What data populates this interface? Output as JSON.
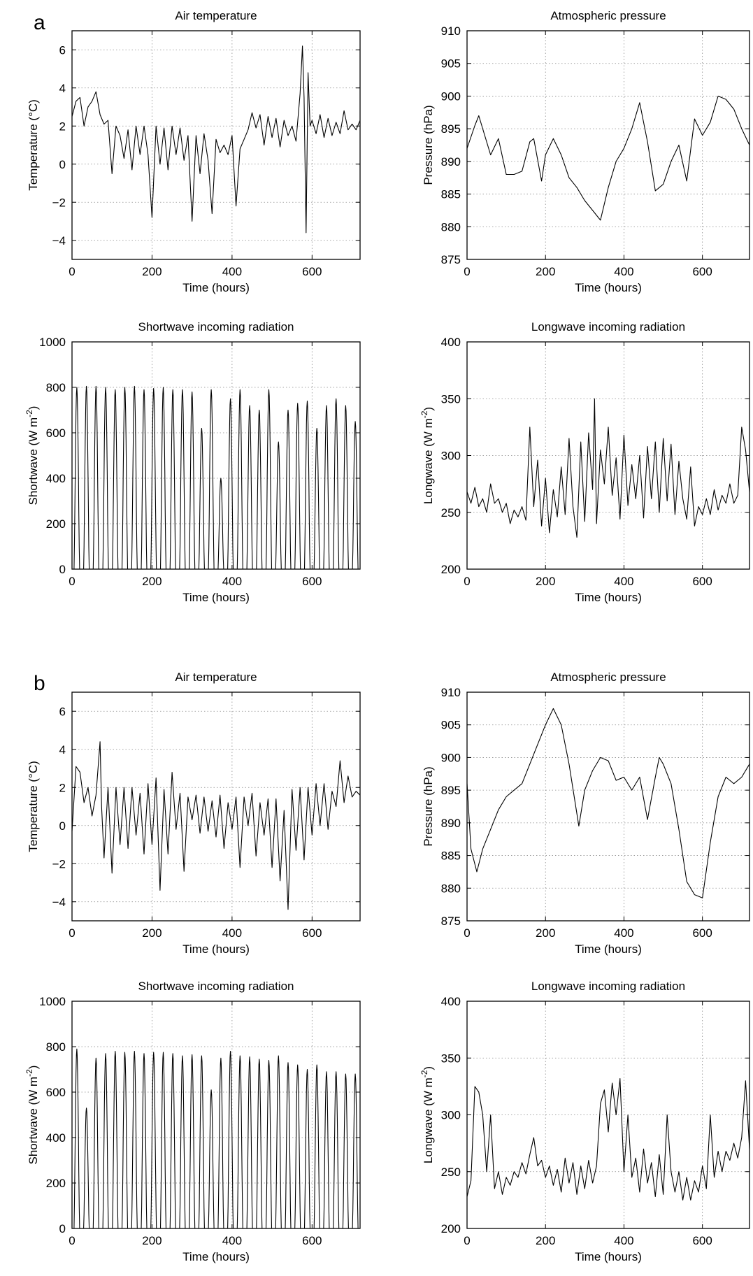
{
  "figure": {
    "panel_labels": [
      "a",
      "b"
    ]
  },
  "chart_data": [
    {
      "group": "a",
      "type": "line",
      "title": "Air temperature",
      "xlabel": "Time (hours)",
      "ylabel": "Temperature (°C)",
      "xlim": [
        0,
        720
      ],
      "ylim": [
        -5,
        7
      ],
      "xticks": [
        0,
        200,
        400,
        600
      ],
      "yticks": [
        -4,
        -2,
        0,
        2,
        4,
        6
      ],
      "grid": true,
      "series": [
        {
          "x": [
            0,
            10,
            20,
            30,
            40,
            50,
            60,
            70,
            80,
            90,
            100,
            110,
            120,
            130,
            140,
            150,
            160,
            170,
            180,
            190,
            200,
            210,
            220,
            230,
            240,
            250,
            260,
            270,
            280,
            290,
            300,
            310,
            320,
            330,
            340,
            350,
            360,
            370,
            380,
            390,
            400,
            410,
            420,
            430,
            440,
            450,
            460,
            470,
            480,
            490,
            500,
            510,
            520,
            530,
            540,
            550,
            560,
            570,
            576,
            580,
            585,
            590,
            595,
            600,
            610,
            620,
            630,
            640,
            650,
            660,
            670,
            680,
            690,
            700,
            710,
            720
          ],
          "y": [
            2.5,
            3.3,
            3.5,
            2.0,
            3.0,
            3.3,
            3.8,
            2.6,
            2.1,
            2.3,
            -0.5,
            2.0,
            1.5,
            0.3,
            1.8,
            -0.3,
            2.0,
            0.5,
            2.0,
            0.5,
            -2.8,
            2.0,
            0.0,
            1.9,
            -0.3,
            2.0,
            0.5,
            1.9,
            0.2,
            1.5,
            -3.0,
            1.5,
            -0.5,
            1.6,
            0.2,
            -2.6,
            1.3,
            0.6,
            1.0,
            0.5,
            1.5,
            -2.2,
            0.8,
            1.3,
            1.8,
            2.7,
            1.9,
            2.6,
            1.0,
            2.5,
            1.4,
            2.4,
            0.9,
            2.3,
            1.5,
            2.0,
            1.2,
            3.7,
            6.2,
            3.5,
            -3.6,
            4.8,
            2.0,
            2.3,
            1.6,
            2.6,
            1.4,
            2.4,
            1.5,
            2.2,
            1.6,
            2.8,
            1.8,
            2.1,
            1.8,
            2.3
          ]
        }
      ]
    },
    {
      "group": "a",
      "type": "line",
      "title": "Atmospheric pressure",
      "xlabel": "Time (hours)",
      "ylabel": "Pressure (hPa)",
      "xlim": [
        0,
        720
      ],
      "ylim": [
        875,
        910
      ],
      "xticks": [
        0,
        200,
        400,
        600
      ],
      "yticks": [
        875,
        880,
        885,
        890,
        895,
        900,
        905,
        910
      ],
      "grid": true,
      "series": [
        {
          "x": [
            0,
            20,
            30,
            40,
            60,
            80,
            100,
            120,
            140,
            160,
            170,
            190,
            200,
            220,
            240,
            260,
            280,
            300,
            320,
            340,
            360,
            380,
            400,
            420,
            440,
            460,
            480,
            500,
            520,
            540,
            560,
            580,
            600,
            620,
            640,
            660,
            680,
            700,
            720
          ],
          "y": [
            892,
            895.5,
            897,
            895,
            891,
            893.5,
            888,
            888,
            888.5,
            893,
            893.5,
            887,
            891,
            893.5,
            891,
            887.5,
            886,
            884,
            882.5,
            881,
            886,
            890,
            892,
            895,
            899,
            893,
            885.5,
            886.5,
            890,
            892.5,
            887,
            896.5,
            894,
            896,
            900,
            899.5,
            898,
            895,
            892.5
          ]
        }
      ]
    },
    {
      "group": "a",
      "type": "line",
      "title": "Shortwave incoming radiation",
      "xlabel": "Time (hours)",
      "ylabel": "Shortwave (W m⁻²)",
      "xlim": [
        0,
        720
      ],
      "ylim": [
        0,
        1000
      ],
      "xticks": [
        0,
        200,
        400,
        600
      ],
      "yticks": [
        0,
        200,
        400,
        600,
        800,
        1000
      ],
      "grid": true,
      "daily_peaks": [
        800,
        805,
        805,
        800,
        790,
        800,
        805,
        790,
        795,
        800,
        790,
        790,
        780,
        620,
        790,
        400,
        750,
        790,
        720,
        700,
        790,
        560,
        700,
        730,
        740,
        620,
        720,
        750,
        720,
        650
      ]
    },
    {
      "group": "a",
      "type": "line",
      "title": "Longwave incoming radiation",
      "xlabel": "Time (hours)",
      "ylabel": "Longwave (W m⁻²)",
      "xlim": [
        0,
        720
      ],
      "ylim": [
        200,
        400
      ],
      "xticks": [
        0,
        200,
        400,
        600
      ],
      "yticks": [
        200,
        250,
        300,
        350,
        400
      ],
      "grid": true,
      "series": [
        {
          "x": [
            0,
            10,
            20,
            30,
            40,
            50,
            60,
            70,
            80,
            90,
            100,
            110,
            120,
            130,
            140,
            150,
            160,
            170,
            180,
            190,
            200,
            210,
            220,
            230,
            240,
            250,
            260,
            270,
            280,
            290,
            300,
            310,
            320,
            325,
            330,
            340,
            350,
            360,
            370,
            380,
            390,
            400,
            410,
            420,
            430,
            440,
            450,
            460,
            470,
            480,
            490,
            500,
            510,
            520,
            530,
            540,
            550,
            560,
            570,
            580,
            590,
            600,
            610,
            620,
            630,
            640,
            650,
            660,
            670,
            680,
            690,
            700,
            710,
            720
          ],
          "y": [
            268,
            258,
            272,
            255,
            262,
            250,
            275,
            258,
            262,
            250,
            258,
            240,
            252,
            246,
            255,
            243,
            325,
            255,
            296,
            238,
            280,
            232,
            270,
            246,
            290,
            248,
            315,
            255,
            228,
            312,
            242,
            320,
            270,
            350,
            240,
            305,
            275,
            325,
            265,
            298,
            244,
            318,
            256,
            292,
            262,
            300,
            245,
            308,
            262,
            312,
            250,
            315,
            260,
            310,
            248,
            295,
            262,
            244,
            290,
            238,
            255,
            248,
            262,
            248,
            270,
            252,
            265,
            258,
            275,
            258,
            265,
            325,
            305,
            268
          ]
        }
      ]
    },
    {
      "group": "b",
      "type": "line",
      "title": "Air temperature",
      "xlabel": "Time (hours)",
      "ylabel": "Temperature (°C)",
      "xlim": [
        0,
        720
      ],
      "ylim": [
        -5,
        7
      ],
      "xticks": [
        0,
        200,
        400,
        600
      ],
      "yticks": [
        -4,
        -2,
        0,
        2,
        4,
        6
      ],
      "grid": true,
      "series": [
        {
          "x": [
            0,
            10,
            20,
            30,
            40,
            50,
            60,
            70,
            74,
            80,
            90,
            100,
            110,
            120,
            130,
            140,
            150,
            160,
            170,
            180,
            190,
            200,
            210,
            220,
            230,
            240,
            250,
            260,
            270,
            280,
            290,
            300,
            310,
            320,
            330,
            340,
            350,
            360,
            370,
            380,
            390,
            400,
            410,
            420,
            430,
            440,
            450,
            460,
            470,
            480,
            490,
            500,
            510,
            520,
            530,
            540,
            550,
            560,
            570,
            580,
            590,
            600,
            610,
            620,
            630,
            640,
            650,
            660,
            670,
            680,
            690,
            700,
            710,
            720
          ],
          "y": [
            -0.3,
            3.1,
            2.8,
            1.2,
            2.0,
            0.5,
            1.6,
            4.4,
            1.0,
            -1.7,
            2.0,
            -2.5,
            2.0,
            -1.0,
            2.0,
            -1.2,
            2.0,
            -0.5,
            1.7,
            -1.5,
            2.2,
            -1.0,
            2.5,
            -3.4,
            1.9,
            -1.5,
            2.8,
            -0.2,
            1.7,
            -2.4,
            1.5,
            0.3,
            1.6,
            -0.4,
            1.5,
            -0.3,
            1.3,
            -0.6,
            1.6,
            -1.2,
            1.2,
            -0.2,
            1.5,
            -2.2,
            1.5,
            0.0,
            1.7,
            -1.6,
            1.2,
            -0.5,
            1.4,
            -2.2,
            1.4,
            -2.9,
            0.8,
            -4.4,
            1.9,
            -1.3,
            2.0,
            -1.8,
            2.0,
            -0.5,
            2.2,
            0.0,
            2.2,
            -0.2,
            1.8,
            1.0,
            3.4,
            1.2,
            2.6,
            1.5,
            1.8,
            1.6
          ]
        }
      ]
    },
    {
      "group": "b",
      "type": "line",
      "title": "Atmospheric pressure",
      "xlabel": "Time (hours)",
      "ylabel": "Pressure (hPa)",
      "xlim": [
        0,
        720
      ],
      "ylim": [
        875,
        910
      ],
      "xticks": [
        0,
        200,
        400,
        600
      ],
      "yticks": [
        875,
        880,
        885,
        890,
        895,
        900,
        905,
        910
      ],
      "grid": true,
      "series": [
        {
          "x": [
            0,
            10,
            25,
            40,
            60,
            80,
            100,
            120,
            140,
            160,
            180,
            200,
            220,
            240,
            260,
            285,
            300,
            320,
            340,
            360,
            380,
            400,
            420,
            440,
            460,
            480,
            490,
            500,
            520,
            540,
            560,
            580,
            600,
            620,
            640,
            660,
            680,
            700,
            720
          ],
          "y": [
            896,
            886,
            882.5,
            886,
            889,
            892,
            894,
            895,
            896,
            899,
            902,
            905,
            907.5,
            905,
            899,
            889.5,
            895,
            898,
            900,
            899.5,
            896.5,
            897,
            895,
            897,
            890.5,
            897,
            900,
            899,
            896,
            889,
            881,
            879,
            878.5,
            887,
            894,
            897,
            896,
            897,
            899
          ]
        }
      ]
    },
    {
      "group": "b",
      "type": "line",
      "title": "Shortwave incoming radiation",
      "xlabel": "Time (hours)",
      "ylabel": "Shortwave (W m⁻²)",
      "xlim": [
        0,
        720
      ],
      "ylim": [
        0,
        1000
      ],
      "xticks": [
        0,
        200,
        400,
        600
      ],
      "yticks": [
        0,
        200,
        400,
        600,
        800,
        1000
      ],
      "grid": true,
      "daily_peaks": [
        790,
        530,
        750,
        770,
        780,
        775,
        780,
        770,
        775,
        775,
        770,
        760,
        765,
        760,
        610,
        750,
        780,
        760,
        755,
        745,
        740,
        760,
        730,
        720,
        700,
        720,
        690,
        690,
        680,
        680
      ]
    },
    {
      "group": "b",
      "type": "line",
      "title": "Longwave incoming radiation",
      "xlabel": "Time (hours)",
      "ylabel": "Longwave (W m⁻²)",
      "xlim": [
        0,
        720
      ],
      "ylim": [
        200,
        400
      ],
      "xticks": [
        0,
        200,
        400,
        600
      ],
      "yticks": [
        200,
        250,
        300,
        350,
        400
      ],
      "grid": true,
      "series": [
        {
          "x": [
            0,
            10,
            20,
            30,
            40,
            50,
            60,
            70,
            80,
            90,
            100,
            110,
            120,
            130,
            140,
            150,
            160,
            170,
            180,
            190,
            200,
            210,
            220,
            230,
            240,
            250,
            260,
            270,
            280,
            290,
            300,
            310,
            320,
            330,
            340,
            350,
            360,
            370,
            380,
            390,
            400,
            410,
            420,
            430,
            440,
            450,
            460,
            470,
            480,
            490,
            500,
            510,
            520,
            530,
            540,
            550,
            560,
            570,
            580,
            590,
            600,
            610,
            620,
            630,
            640,
            650,
            660,
            670,
            680,
            690,
            700,
            710,
            720
          ],
          "y": [
            228,
            242,
            325,
            320,
            300,
            250,
            300,
            235,
            250,
            230,
            245,
            238,
            250,
            245,
            258,
            248,
            265,
            280,
            255,
            260,
            245,
            255,
            238,
            252,
            232,
            262,
            240,
            258,
            230,
            255,
            235,
            260,
            240,
            255,
            310,
            322,
            285,
            328,
            300,
            332,
            250,
            300,
            245,
            262,
            232,
            270,
            240,
            258,
            228,
            265,
            230,
            300,
            250,
            232,
            250,
            225,
            245,
            225,
            242,
            232,
            255,
            235,
            300,
            245,
            268,
            250,
            268,
            260,
            275,
            262,
            280,
            330,
            270
          ]
        }
      ]
    }
  ]
}
